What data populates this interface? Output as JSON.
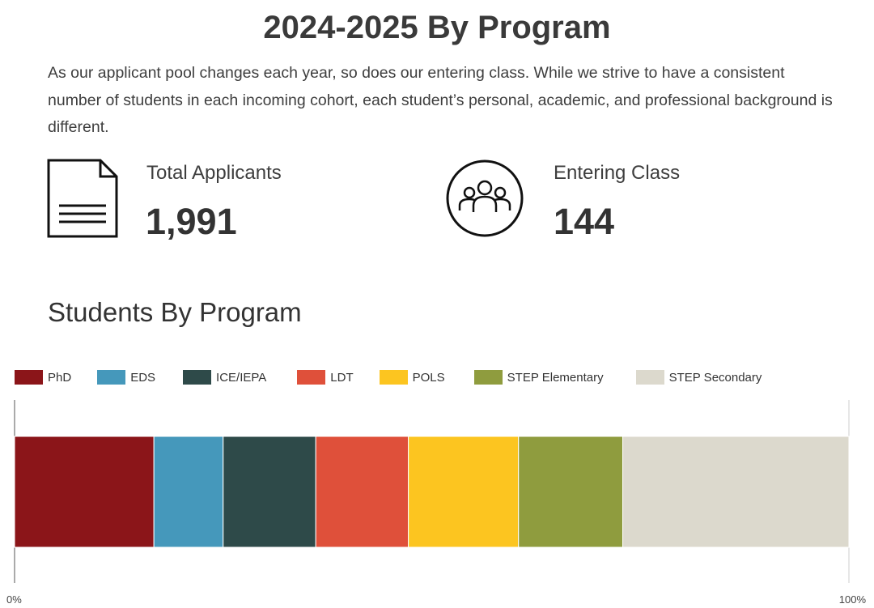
{
  "header": {
    "title": "2024-2025 By Program",
    "intro": "As our applicant pool changes each year, so does our entering class. While we strive to have a consistent number of students in each incoming cohort, each student’s personal, academic, and professional background is different."
  },
  "stats": {
    "applicants": {
      "label": "Total Applicants",
      "value": "1,991",
      "icon": "document-icon"
    },
    "entering": {
      "label": "Entering Class",
      "value": "144",
      "icon": "people-group-icon"
    }
  },
  "section": {
    "title": "Students By Program"
  },
  "chart_data": {
    "type": "bar",
    "orientation": "horizontal-stacked-100",
    "title": "",
    "categories": [
      ""
    ],
    "series": [
      {
        "name": "PhD",
        "values": [
          16.7
        ],
        "color": "#8b1519"
      },
      {
        "name": "EDS",
        "values": [
          8.3
        ],
        "color": "#4598bb"
      },
      {
        "name": "ICE/IEPA",
        "values": [
          11.1
        ],
        "color": "#2e4a49"
      },
      {
        "name": "LDT",
        "values": [
          11.1
        ],
        "color": "#df503a"
      },
      {
        "name": "POLS",
        "values": [
          13.2
        ],
        "color": "#fcc520"
      },
      {
        "name": "STEP Elementary",
        "values": [
          12.5
        ],
        "color": "#8f9c3e"
      },
      {
        "name": "STEP Secondary",
        "values": [
          27.1
        ],
        "color": "#dcd9cd"
      }
    ],
    "xlim": [
      0,
      100
    ],
    "x_ticks": [
      "0%",
      "100%"
    ],
    "legend_position": "top",
    "grid": false
  }
}
